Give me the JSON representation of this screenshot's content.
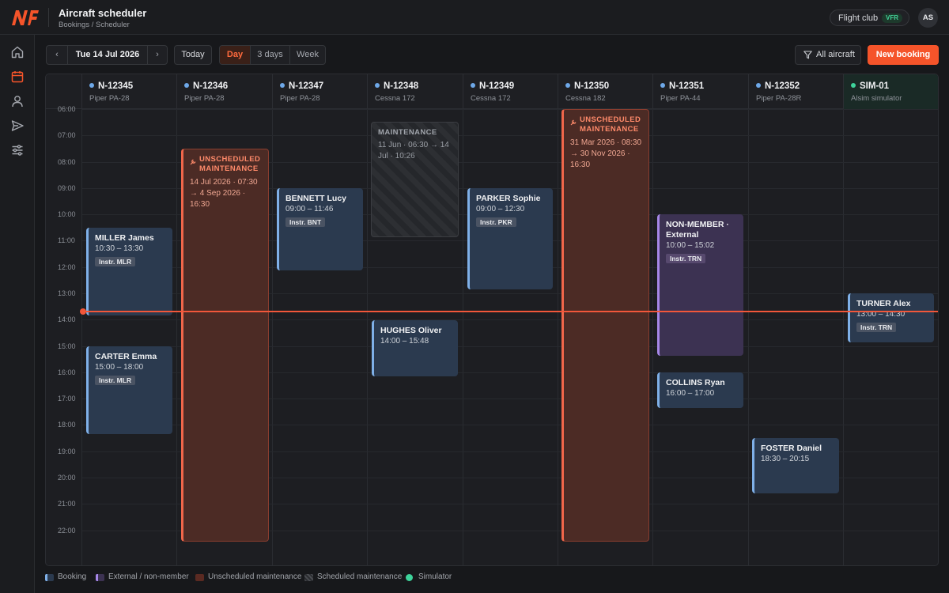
{
  "app": {
    "title": "Aircraft scheduler",
    "breadcrumb": "Bookings / Scheduler"
  },
  "header": {
    "club": "Flight club",
    "club_badge": "VFR",
    "avatar": "AS"
  },
  "sidebar": {
    "items": [
      {
        "icon": "home-icon"
      },
      {
        "icon": "calendar-icon",
        "active": true
      },
      {
        "icon": "user-icon"
      },
      {
        "icon": "send-icon"
      },
      {
        "icon": "sliders-icon"
      }
    ]
  },
  "toolbar": {
    "prev": "‹",
    "date": "Tue 14 Jul 2026",
    "next": "›",
    "today": "Today",
    "views": [
      "Day",
      "3 days",
      "Week"
    ],
    "active_view": "Day",
    "filter": "All aircraft",
    "new_booking": "New booking"
  },
  "hours": [
    "06:00",
    "07:00",
    "08:00",
    "09:00",
    "10:00",
    "11:00",
    "12:00",
    "13:00",
    "14:00",
    "15:00",
    "16:00",
    "17:00",
    "18:00",
    "19:00",
    "20:00",
    "21:00",
    "22:00"
  ],
  "aircraft": [
    {
      "reg": "N-12345",
      "model": "Piper PA-28",
      "dot": "#6ea8e8"
    },
    {
      "reg": "N-12346",
      "model": "Piper PA-28",
      "dot": "#6ea8e8"
    },
    {
      "reg": "N-12347",
      "model": "Piper PA-28",
      "dot": "#6ea8e8"
    },
    {
      "reg": "N-12348",
      "model": "Cessna 172",
      "dot": "#6ea8e8"
    },
    {
      "reg": "N-12349",
      "model": "Cessna 172",
      "dot": "#6ea8e8"
    },
    {
      "reg": "N-12350",
      "model": "Cessna 182",
      "dot": "#6ea8e8"
    },
    {
      "reg": "N-12351",
      "model": "Piper PA-44",
      "dot": "#6ea8e8"
    },
    {
      "reg": "N-12352",
      "model": "Piper PA-28R",
      "dot": "#6ea8e8"
    },
    {
      "reg": "SIM-01",
      "model": "Alsim simulator",
      "dot": "#3ed39b"
    }
  ],
  "events": {
    "miller": {
      "name": "MILLER James",
      "time": "10:30 – 13:30",
      "instr": "Instr. MLR"
    },
    "carter": {
      "name": "CARTER Emma",
      "time": "15:00 – 18:00",
      "instr": "Instr. MLR"
    },
    "unsched_46": {
      "title": "UNSCHEDULED MAINTENANCE",
      "dates": "14 Jul 2026 · 07:30 → 4 Sep 2026 · 16:30"
    },
    "bennett": {
      "name": "BENNETT Lucy",
      "time": "09:00 – 11:46",
      "instr": "Instr. BNT"
    },
    "sched_48": {
      "title": "MAINTENANCE",
      "dates": "11 Jun · 06:30 → 14 Jul · 10:26"
    },
    "hughes": {
      "name": "HUGHES Oliver",
      "time": "14:00 – 15:48"
    },
    "parker": {
      "name": "PARKER Sophie",
      "time": "09:00 – 12:30",
      "instr": "Instr. PKR"
    },
    "unsched_50": {
      "title": "UNSCHEDULED MAINTENANCE",
      "dates": "31 Mar 2026 · 08:30 → 30 Nov 2026 · 16:30"
    },
    "nonmember": {
      "name": "NON-MEMBER · External",
      "time": "10:00 – 15:02",
      "instr": "Instr. TRN"
    },
    "collins": {
      "name": "COLLINS Ryan",
      "time": "16:00 – 17:00"
    },
    "foster": {
      "name": "FOSTER Daniel",
      "time": "18:30 – 20:15"
    },
    "turner": {
      "name": "TURNER Alex",
      "time": "13:00 – 14:30",
      "instr": "Instr. TRN"
    }
  },
  "legend": [
    "Booking",
    "External / non-member",
    "Unscheduled maintenance",
    "Scheduled maintenance",
    "Simulator"
  ],
  "colors": {
    "accent": "#f5542a",
    "booking": "#7fb0e8",
    "external": "#a687e8",
    "unscheduled": "#f0664a",
    "simulator": "#3ed39b"
  }
}
